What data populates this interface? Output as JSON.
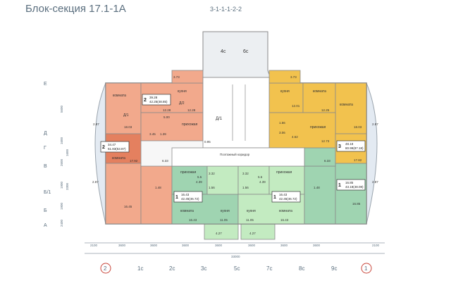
{
  "header": {
    "title": "Блок-секция 17.1-1А",
    "code": "3-1-1-1-2-2"
  },
  "colors": {
    "salmon": "#f2a98c",
    "salmon_dark": "#e4805f",
    "gold": "#f2c24e",
    "green_light": "#c3ebc1",
    "green_mid": "#9fd4b1",
    "balcony": "#e3eaf2",
    "wall": "#8a8a8a",
    "axis": "#5a6e7e",
    "circle_red": "#c8453a"
  },
  "axes_left": {
    "rows": [
      "Е",
      "Д",
      "Г",
      "В",
      "Б/1",
      "Б",
      "А"
    ],
    "dims": [
      "5600",
      "1600",
      "1600",
      "2600",
      "1900",
      "3300",
      "1900",
      "2400"
    ]
  },
  "axes_bottom": {
    "labels": [
      "2",
      "1с",
      "2с",
      "3с",
      "5с",
      "7с",
      "8с",
      "9с",
      "1"
    ],
    "dims": [
      "2100",
      "3600",
      "3600",
      "3600",
      "3600",
      "3600",
      "3600",
      "3600",
      "2100"
    ],
    "total": "33000"
  },
  "stairs": {
    "labels": [
      "4с",
      "6с"
    ]
  },
  "corridor": {
    "label": "Поэтажный коридор",
    "area": "0.95"
  },
  "apartments": [
    {
      "id": "apt-left-top",
      "rooms": "2",
      "area_main": "39.28",
      "area_total": "42.25(48.85)",
      "room_label": "комната",
      "kitchen_label": "кухня",
      "hall_label": "прихожая",
      "d_label": "Д/1",
      "d2_label": "Д/2",
      "room_area": "18.03",
      "kitchen_area": "12.28",
      "hall_area": "5.00",
      "bath_area": "3.45",
      "wc_area": "1.39",
      "kitchen2_area": "12.28",
      "balcony_area": "3.73",
      "side_balcony": "2.87"
    },
    {
      "id": "apt-left-mid",
      "rooms": "2",
      "area_main": "34.47",
      "area_total": "51.83(53.87)",
      "room_label": "комната",
      "room_area": "17.92",
      "room2_area": "16.45",
      "side_balcony": "2.87",
      "lobby_area": "6.33"
    },
    {
      "id": "apt-mid-left",
      "rooms": "1",
      "area_main": "16.43",
      "area_total": "42.45(46.72)",
      "hall_label": "прихожая",
      "kitchen_label": "кухня",
      "kitchen_area": "11.05",
      "room_label": "комната",
      "room_area": "16.43",
      "hall_area": "5.5",
      "bath_area": "4.39",
      "wc_area": "1.48",
      "bath2_area": "3.32",
      "bath3_area": "1.56",
      "balcony_area": "4.27"
    },
    {
      "id": "apt-mid-right",
      "rooms": "1",
      "area_main": "16.43",
      "area_total": "42.45(46.72)",
      "hall_label": "прихожая",
      "kitchen_label": "кухня",
      "kitchen_area": "11.05",
      "room_label": "комната",
      "room_area": "16.43",
      "hall_area": "5.5",
      "bath_area": "4.39",
      "wc_area": "1.48",
      "bath2_area": "3.32",
      "bath3_area": "1.56",
      "balcony_area": "4.27"
    },
    {
      "id": "apt-right-top",
      "rooms": "3",
      "area_main": "48.18",
      "area_total": "80.99(87.18)",
      "room_label": "комната",
      "kitchen_label": "кухня",
      "hall_label": "прихожая",
      "room_area": "18.03",
      "room2_area": "12.25",
      "kitchen_area": "12.01",
      "hall_area": "12.73",
      "bath_area": "3.06",
      "wc_area": "4.62",
      "small_area": "1.56",
      "room3_area": "17.82",
      "balcony_area": "3.73",
      "side_balcony": "2.87",
      "lobby_area": "6.33"
    },
    {
      "id": "apt-right-bottom",
      "rooms": "1",
      "area_main": "16.85",
      "area_total": "43.18(48.08)",
      "room_label": "комната",
      "room_area": "16.85",
      "side_balcony": "2.87"
    }
  ],
  "core": {
    "label": "Д/1"
  }
}
